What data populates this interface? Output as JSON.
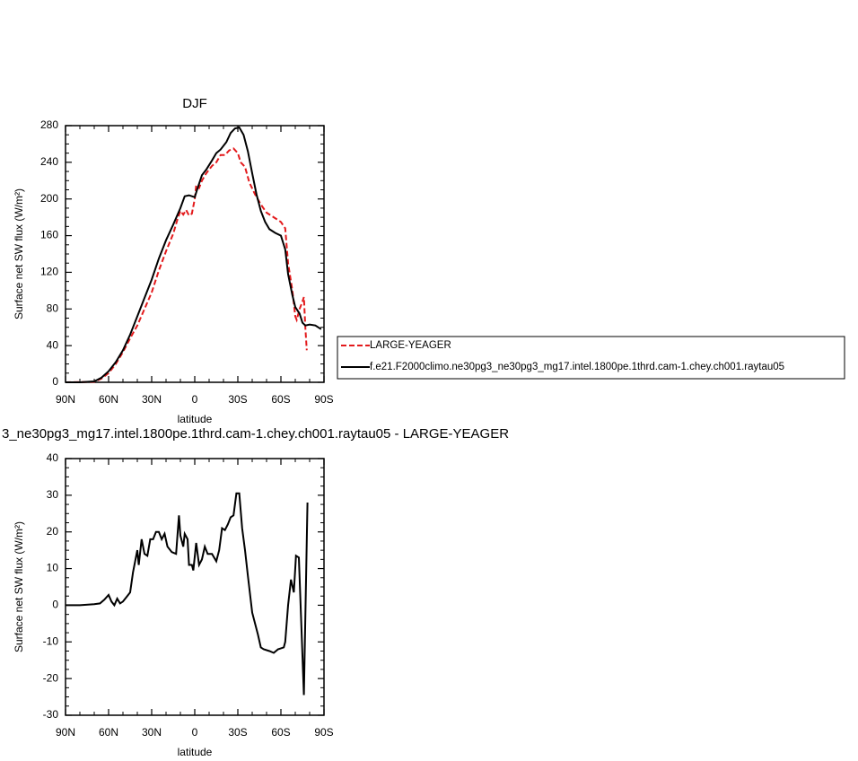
{
  "chart_data": [
    {
      "type": "line",
      "title": "DJF",
      "xlabel": "latitude",
      "ylabel": "Surface net SW flux (W/m²)",
      "xlim": [
        90,
        -90
      ],
      "xticks": [
        {
          "value": 90,
          "label": "90N"
        },
        {
          "value": 60,
          "label": "60N"
        },
        {
          "value": 30,
          "label": "30N"
        },
        0,
        {
          "value": -30,
          "label": "30S"
        },
        {
          "value": -60,
          "label": "60S"
        },
        {
          "value": -90,
          "label": "90S"
        }
      ],
      "ylim": [
        0,
        280
      ],
      "yticks": [
        0,
        40,
        80,
        120,
        160,
        200,
        240,
        280
      ],
      "legend": "right",
      "series": [
        {
          "name": "LARGE-YEAGER",
          "color": "#e31a1c",
          "line_style": "dashed",
          "x": [
            90,
            70,
            65,
            60,
            55,
            50,
            45,
            40,
            35,
            30,
            25,
            20,
            15,
            12,
            10,
            8,
            6,
            4,
            2,
            0,
            -1,
            -3,
            -5,
            -8,
            -12,
            -15,
            -18,
            -21,
            -24,
            -27,
            -30,
            -32,
            -35,
            -38,
            -42,
            -46,
            -50,
            -55,
            -60,
            -63,
            -65,
            -68,
            -70,
            -71,
            -73,
            -75,
            -76,
            -77,
            -78
          ],
          "values": [
            0,
            0.5,
            4,
            10,
            20,
            33,
            48,
            62,
            80,
            98,
            122,
            143,
            162,
            178,
            187,
            183,
            188,
            182,
            184,
            200,
            215,
            212,
            220,
            228,
            236,
            240,
            248,
            248,
            253,
            255,
            250,
            240,
            235,
            218,
            205,
            194,
            185,
            180,
            175,
            168,
            130,
            100,
            72,
            68,
            80,
            88,
            93,
            60,
            35
          ]
        },
        {
          "name": "f.e21.F2000climo.ne30pg3_ne30pg3_mg17.intel.1800pe.1thrd.cam-1.chey.ch001.raytau05",
          "color": "#000000",
          "line_style": "solid",
          "x": [
            90,
            80,
            70,
            65,
            60,
            55,
            50,
            45,
            40,
            35,
            30,
            25,
            20,
            15,
            10,
            7,
            4,
            0,
            -2,
            -5,
            -8,
            -12,
            -15,
            -18,
            -22,
            -25,
            -28,
            -31,
            -34,
            -37,
            -40,
            -43,
            -46,
            -49,
            -52,
            -56,
            -60,
            -63,
            -65,
            -68,
            -70,
            -73,
            -75,
            -77,
            -80,
            -84,
            -88
          ],
          "values": [
            0,
            0,
            1,
            5,
            12,
            22,
            35,
            52,
            72,
            92,
            112,
            135,
            155,
            172,
            190,
            203,
            204,
            202,
            212,
            226,
            232,
            242,
            250,
            254,
            262,
            272,
            277,
            278,
            270,
            252,
            228,
            205,
            187,
            175,
            167,
            163,
            160,
            145,
            118,
            95,
            82,
            75,
            65,
            62,
            63,
            62,
            58
          ]
        }
      ]
    },
    {
      "type": "line",
      "title": "3_ne30pg3_mg17.intel.1800pe.1thrd.cam-1.chey.ch001.raytau05 - LARGE-YEAGER",
      "xlabel": "latitude",
      "ylabel": "Surface net SW flux (W/m²)",
      "xlim": [
        90,
        -90
      ],
      "xticks": [
        {
          "value": 90,
          "label": "90N"
        },
        {
          "value": 60,
          "label": "60N"
        },
        {
          "value": 30,
          "label": "30N"
        },
        0,
        {
          "value": -30,
          "label": "30S"
        },
        {
          "value": -60,
          "label": "60S"
        },
        {
          "value": -90,
          "label": "90S"
        }
      ],
      "ylim": [
        -30,
        40
      ],
      "yticks": [
        -30,
        -20,
        -10,
        0,
        10,
        20,
        30,
        40
      ],
      "color": "#000000",
      "line_style": "solid",
      "x": [
        90,
        80,
        70,
        66,
        63,
        60,
        58,
        56,
        54,
        52,
        50,
        47,
        45,
        43,
        40,
        39,
        37,
        35,
        33,
        31,
        29,
        27,
        25,
        23,
        21,
        19,
        16,
        13,
        11,
        10,
        8,
        7,
        5,
        4,
        2,
        1,
        -1,
        -3,
        -5,
        -7,
        -9,
        -12,
        -15,
        -17,
        -19,
        -21,
        -23,
        -25,
        -27,
        -29,
        -31,
        -33,
        -35,
        -37,
        -40,
        -44,
        -46,
        -48,
        -52,
        -55,
        -58,
        -62,
        -63,
        -65,
        -67,
        -69,
        -70.5,
        -72.5,
        -76,
        -78.5
      ],
      "values": [
        0,
        0,
        0.3,
        0.5,
        1.5,
        2.8,
        1,
        0,
        1.8,
        0.5,
        1,
        2.5,
        3.5,
        9,
        15,
        11,
        18,
        14,
        13.5,
        18,
        18,
        20,
        20,
        18,
        19.5,
        16,
        14.5,
        14,
        24.5,
        19,
        16,
        19.5,
        18,
        11,
        11,
        9.5,
        17,
        11,
        12.5,
        16,
        14,
        14,
        12,
        15,
        21,
        20.5,
        22,
        24,
        24.5,
        30.5,
        30.5,
        21,
        15,
        8,
        -2,
        -8,
        -11.5,
        -12,
        -12.5,
        -13,
        -12,
        -11.5,
        -10,
        0,
        7,
        3.5,
        13.5,
        13,
        -24.5,
        28
      ]
    }
  ]
}
